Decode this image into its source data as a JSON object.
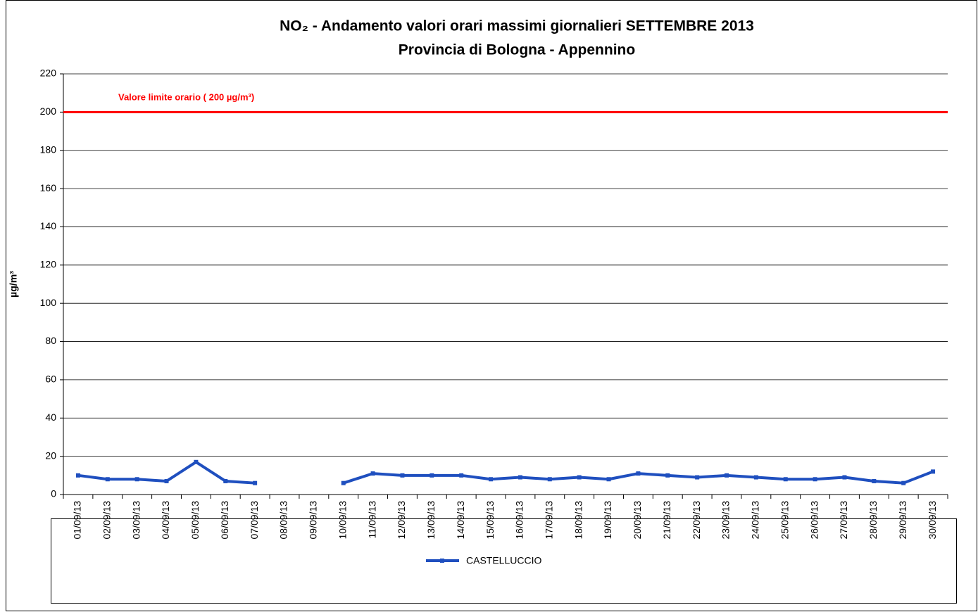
{
  "chart_data": {
    "type": "line",
    "title": "NO₂ - Andamento valori orari massimi giornalieri SETTEMBRE 2013",
    "subtitle": "Provincia di Bologna - Appennino",
    "y_label": "µg/m³",
    "annotation": "Valore limite orario ( 200 µg/m³)",
    "limit": 200,
    "limit_color": "#ff0000",
    "categories": [
      "01/09/13",
      "02/09/13",
      "03/09/13",
      "04/09/13",
      "05/09/13",
      "06/09/13",
      "07/09/13",
      "08/09/13",
      "09/09/13",
      "10/09/13",
      "11/09/13",
      "12/09/13",
      "13/09/13",
      "14/09/13",
      "15/09/13",
      "16/09/13",
      "17/09/13",
      "18/09/13",
      "19/09/13",
      "20/09/13",
      "21/09/13",
      "22/09/13",
      "23/09/13",
      "24/09/13",
      "25/09/13",
      "26/09/13",
      "27/09/13",
      "28/09/13",
      "29/09/13",
      "30/09/13"
    ],
    "series": [
      {
        "name": "CASTELLUCCIO",
        "color": "#1f4fbf",
        "values": [
          10,
          8,
          8,
          7,
          17,
          7,
          6,
          null,
          null,
          6,
          11,
          10,
          10,
          10,
          8,
          9,
          8,
          9,
          8,
          11,
          10,
          9,
          10,
          9,
          8,
          8,
          9,
          7,
          6,
          12
        ]
      }
    ],
    "ylim": [
      0,
      220
    ],
    "yticks": [
      0,
      20,
      40,
      60,
      80,
      100,
      120,
      140,
      160,
      180,
      200,
      220
    ],
    "grid": true
  }
}
